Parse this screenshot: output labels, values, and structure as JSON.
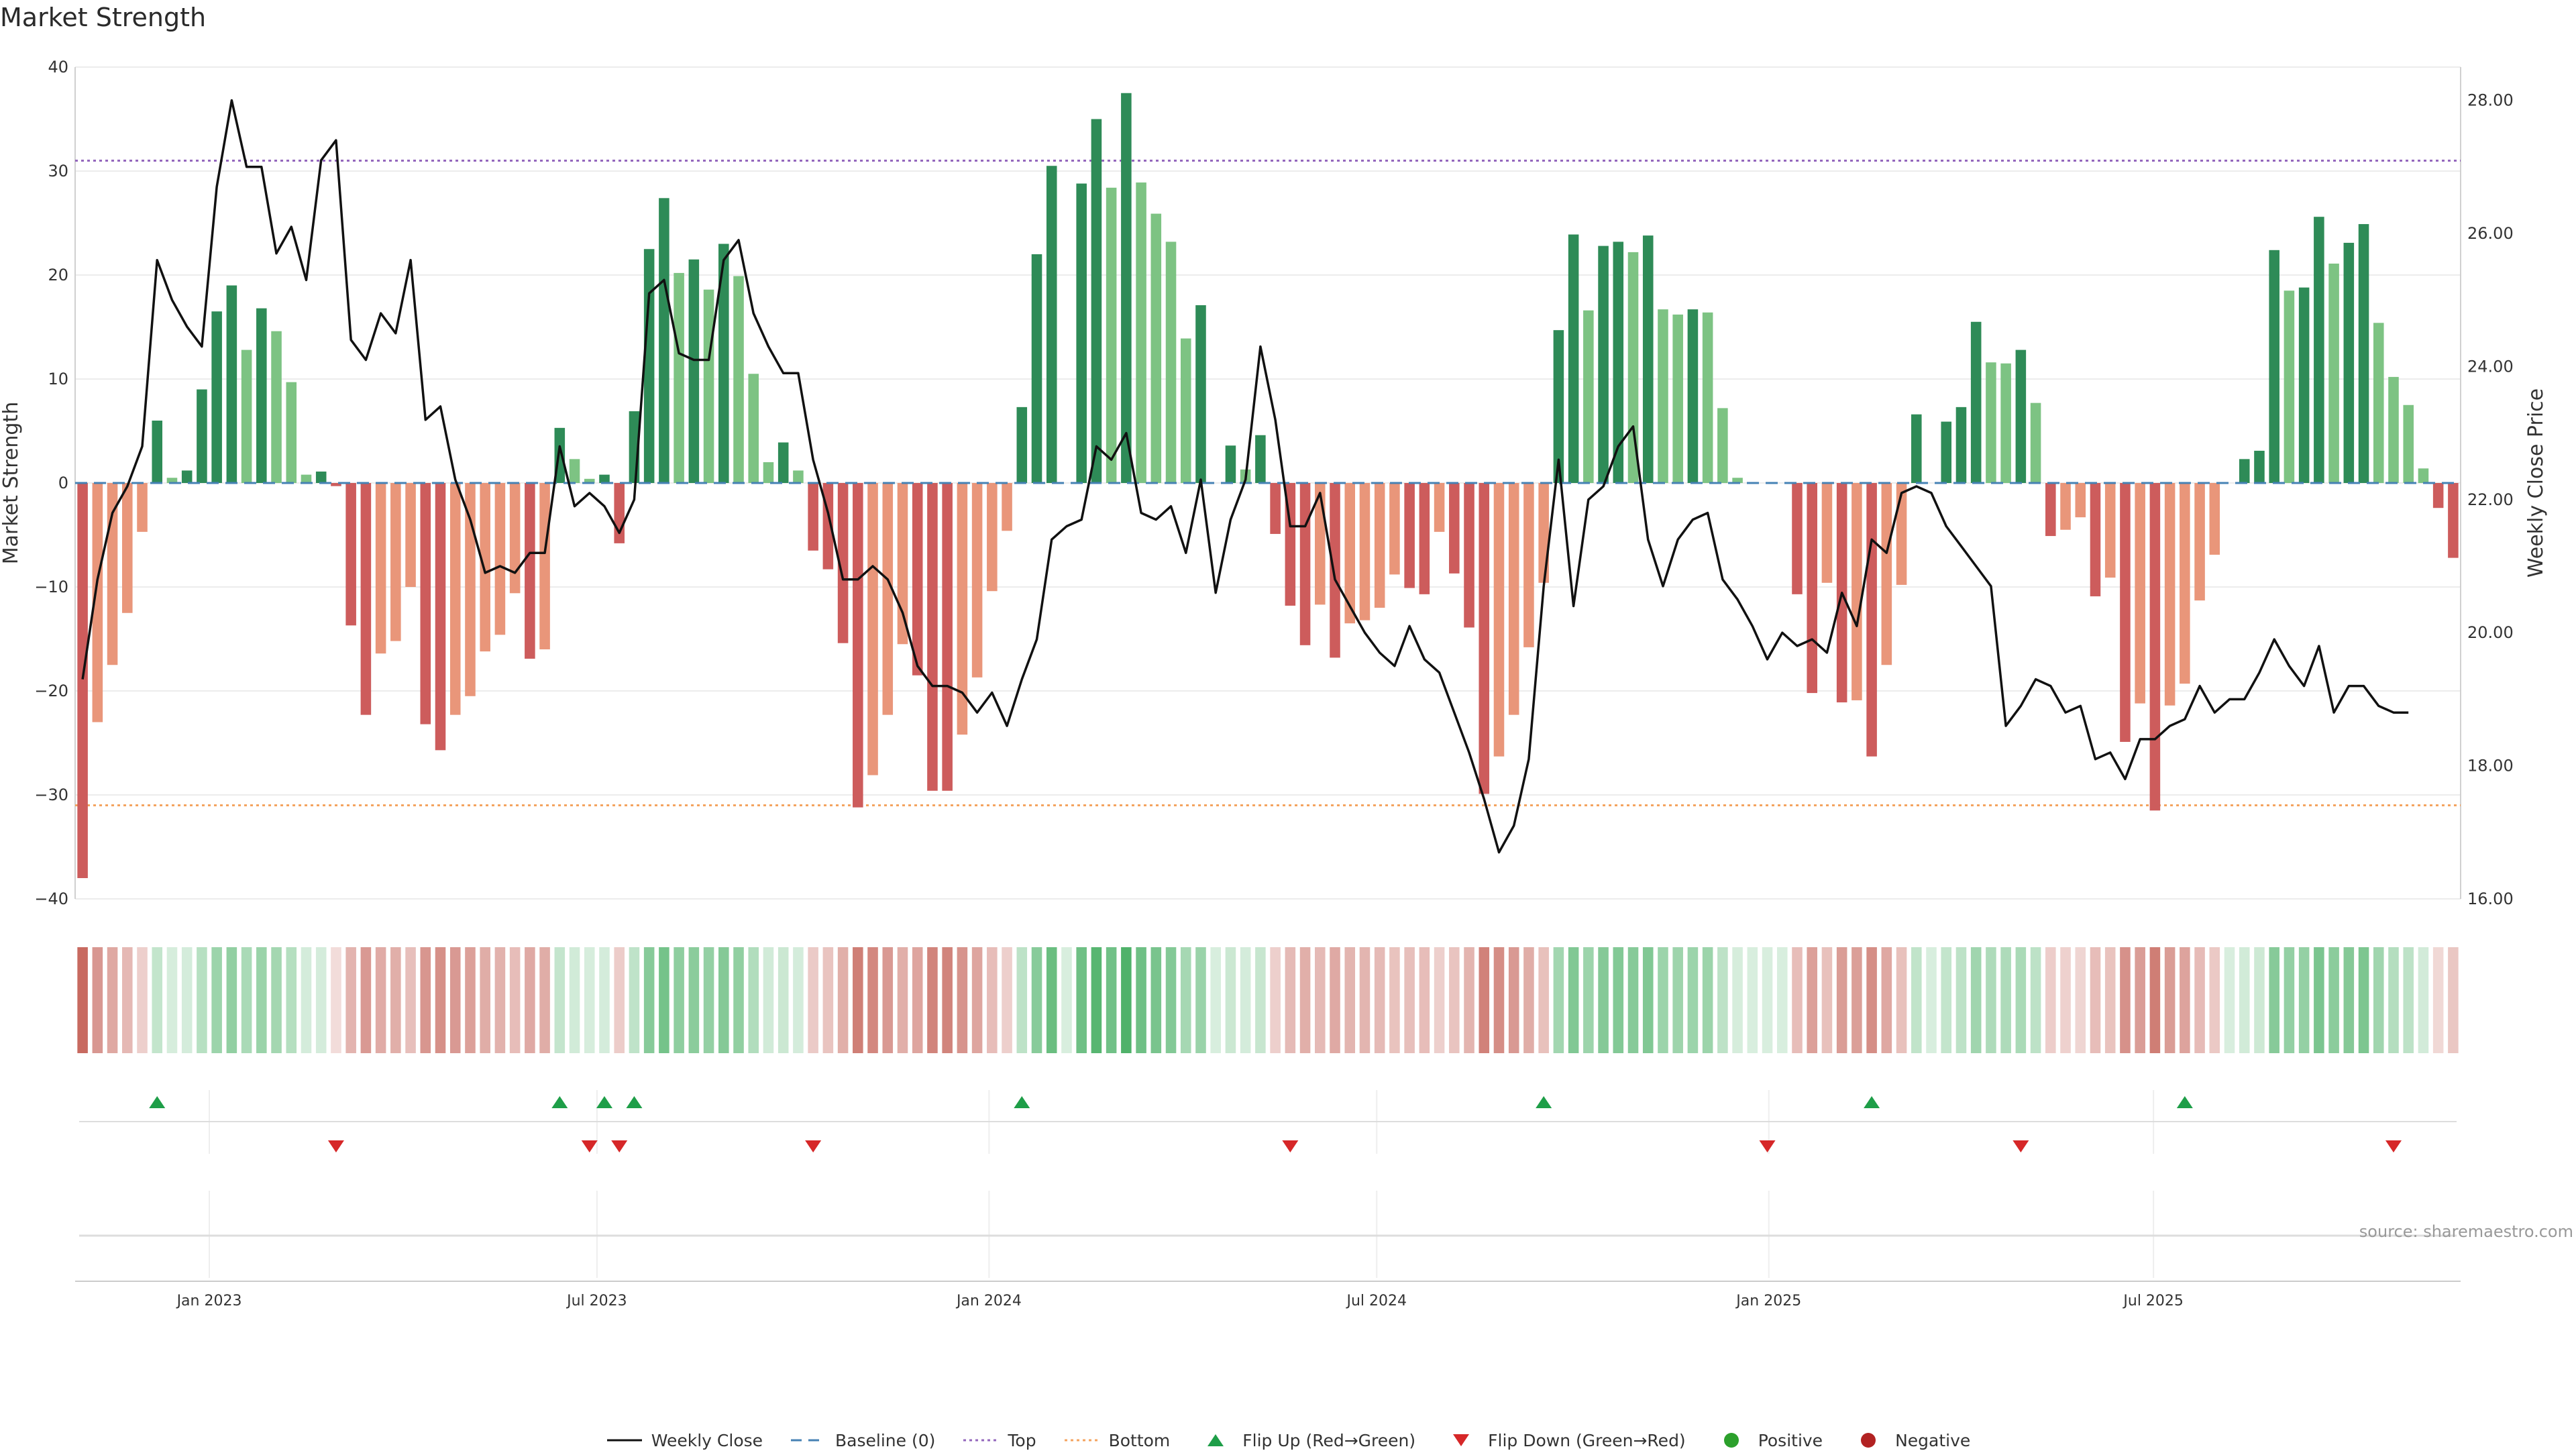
{
  "title": "Market Strength",
  "source": "source: sharemaestro.com",
  "colors": {
    "dark_green": "#2e8b57",
    "light_green": "#7dc383",
    "dark_red": "#cd5c5c",
    "light_red": "#e9967a",
    "price_line": "#111111",
    "baseline": "#4682b4",
    "top_line": "#9467bd",
    "bottom_line": "#f4a460",
    "flip_up": "#1e9e48",
    "flip_down": "#d62728",
    "positive": "#2ca02c",
    "negative": "#b22222"
  },
  "legend": [
    {
      "label": "Weekly Close",
      "icon": "line-icon",
      "color": "#111111"
    },
    {
      "label": "Baseline (0)",
      "icon": "dash-icon",
      "color": "#4682b4"
    },
    {
      "label": "Top",
      "icon": "dot-line-icon",
      "color": "#9467bd"
    },
    {
      "label": "Bottom",
      "icon": "dot-line-icon",
      "color": "#f4a460"
    },
    {
      "label": "Flip Up (Red→Green)",
      "icon": "triangle-up-icon",
      "color": "#1e9e48"
    },
    {
      "label": "Flip Down (Green→Red)",
      "icon": "triangle-down-icon",
      "color": "#d62728"
    },
    {
      "label": "Positive",
      "icon": "circle-icon",
      "color": "#2ca02c"
    },
    {
      "label": "Negative",
      "icon": "circle-icon",
      "color": "#b22222"
    }
  ],
  "chart_data": {
    "type": "bar",
    "title": "Market Strength",
    "ylabel": "Market Strength",
    "y2label": "Weekly Close Price",
    "ylim": [
      -40,
      40
    ],
    "y2lim": [
      16,
      28.5
    ],
    "yticks": [
      -40,
      -30,
      -20,
      -10,
      0,
      10,
      20,
      30,
      40
    ],
    "y2ticks": [
      "16.00",
      "18.00",
      "20.00",
      "22.00",
      "24.00",
      "26.00",
      "28.00"
    ],
    "top_level": 31,
    "bottom_level": -31,
    "date_ticks": [
      {
        "label": "Jan 2023",
        "week": 9
      },
      {
        "label": "Jul 2023",
        "week": 35
      },
      {
        "label": "Jan 2024",
        "week": 61.3
      },
      {
        "label": "Jul 2024",
        "week": 87.3
      },
      {
        "label": "Jan 2025",
        "week": 113.6
      },
      {
        "label": "Jul 2025",
        "week": 139.4
      }
    ],
    "strength": [
      -38,
      -23,
      -17.5,
      -12.5,
      -4.7,
      6,
      0.5,
      1.2,
      9,
      16.5,
      19,
      12.8,
      16.8,
      14.6,
      9.7,
      0.8,
      1.1,
      -0.3,
      -13.7,
      -22.3,
      -16.4,
      -15.2,
      -10,
      -23.2,
      -25.7,
      -22.3,
      -20.5,
      -16.2,
      -14.6,
      -10.6,
      -16.9,
      -16,
      5.3,
      2.3,
      0.4,
      0.8,
      -5.8,
      6.9,
      22.5,
      27.4,
      20.2,
      21.5,
      18.6,
      23,
      19.9,
      10.5,
      2,
      3.9,
      1.2,
      -6.5,
      -8.3,
      -15.4,
      -31.2,
      -28.1,
      -22.3,
      -15.5,
      -18.5,
      -29.6,
      -29.6,
      -24.2,
      -18.7,
      -10.4,
      -4.6,
      7.3,
      22,
      30.5,
      0,
      28.8,
      35,
      28.4,
      37.5,
      28.9,
      25.9,
      23.2,
      13.9,
      17.1,
      0,
      3.6,
      1.3,
      4.6,
      -4.9,
      -11.8,
      -15.6,
      -11.7,
      -16.8,
      -13.5,
      -13.2,
      -12,
      -8.8,
      -10.1,
      -10.7,
      -4.7,
      -8.7,
      -13.9,
      -29.9,
      -26.3,
      -22.3,
      -15.8,
      -9.6,
      14.7,
      23.9,
      16.6,
      22.8,
      23.2,
      22.2,
      23.8,
      16.7,
      16.2,
      16.7,
      16.4,
      7.2,
      0.5,
      0,
      0,
      0,
      -10.7,
      -20.2,
      -9.6,
      -21.1,
      -20.9,
      -26.3,
      -17.5,
      -9.8,
      6.6,
      0,
      5.9,
      7.3,
      15.5,
      11.6,
      11.5,
      12.8,
      7.7,
      -5.1,
      -4.5,
      -3.3,
      -10.9,
      -9.1,
      -24.9,
      -21.2,
      -31.5,
      -21.4,
      -19.3,
      -11.3,
      -6.9,
      0,
      2.3,
      3.1,
      22.4,
      18.5,
      18.8,
      25.6,
      21.1,
      23.1,
      24.9,
      15.4,
      10.2,
      7.5,
      1.4,
      -2.4,
      -7.2
    ],
    "price": [
      19.3,
      20.8,
      21.8,
      22.2,
      22.8,
      25.6,
      25,
      24.6,
      24.3,
      26.7,
      28,
      27,
      27,
      25.7,
      26.1,
      25.3,
      27.1,
      27.4,
      24.4,
      24.1,
      24.8,
      24.5,
      25.6,
      23.2,
      23.4,
      22.3,
      21.7,
      20.9,
      21,
      20.9,
      21.2,
      21.2,
      22.8,
      21.9,
      22.1,
      21.9,
      21.5,
      22,
      25.1,
      25.3,
      24.2,
      24.1,
      24.1,
      25.6,
      25.9,
      24.8,
      24.3,
      23.9,
      23.9,
      22.6,
      21.8,
      20.8,
      20.8,
      21,
      20.8,
      20.3,
      19.5,
      19.2,
      19.2,
      19.1,
      18.8,
      19.1,
      18.6,
      19.3,
      19.9,
      21.4,
      21.6,
      21.7,
      22.8,
      22.6,
      23,
      21.8,
      21.7,
      21.9,
      21.2,
      22.3,
      20.6,
      21.7,
      22.3,
      24.3,
      23.2,
      21.6,
      21.6,
      22.1,
      20.8,
      20.4,
      20,
      19.7,
      19.5,
      20.1,
      19.6,
      19.4,
      18.8,
      18.2,
      17.5,
      16.7,
      17.1,
      18.1,
      20.7,
      22.6,
      20.4,
      22,
      22.2,
      22.8,
      23.1,
      21.4,
      20.7,
      21.4,
      21.7,
      21.8,
      20.8,
      20.5,
      20.1,
      19.6,
      20,
      19.8,
      19.9,
      19.7,
      20.6,
      20.1,
      21.4,
      21.2,
      22.1,
      22.2,
      22.1,
      21.6,
      21.3,
      21,
      20.7,
      18.6,
      18.9,
      19.3,
      19.2,
      18.8,
      18.9,
      18.1,
      18.2,
      17.8,
      18.4,
      18.4,
      18.6,
      18.7,
      19.2,
      18.8,
      19,
      19,
      19.4,
      19.9,
      19.5,
      19.2,
      19.8,
      18.8,
      19.2,
      19.2,
      18.9,
      18.8,
      18.8
    ],
    "flip_up_weeks": [
      5,
      32,
      35,
      37,
      63,
      98,
      120,
      141
    ],
    "flip_down_weeks": [
      17,
      34,
      36,
      49,
      81,
      113,
      130,
      155
    ]
  }
}
